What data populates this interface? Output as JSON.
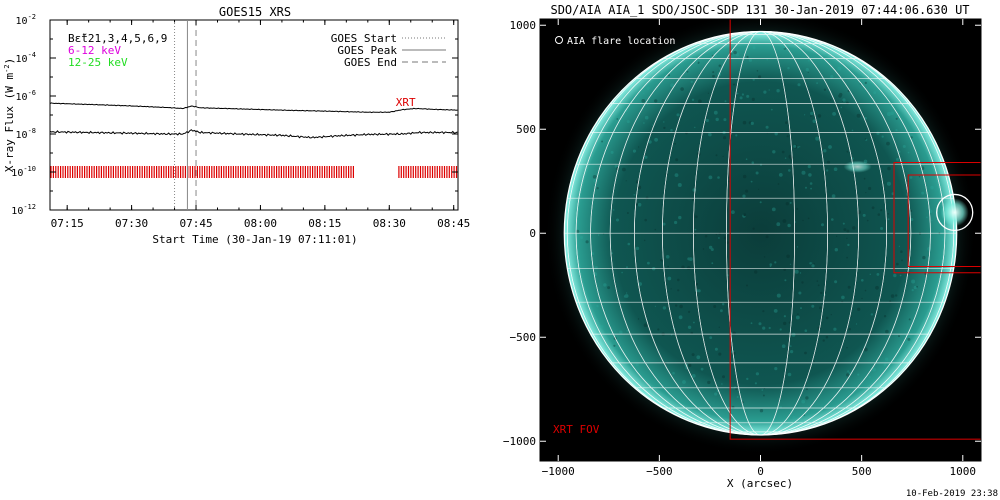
{
  "chart_data": [
    {
      "type": "line",
      "title": "GOES15 XRS",
      "xlabel": "Start Time (30-Jan-19 07:11:01)",
      "ylabel": "X-ray Flux (W m",
      "ylabel_sup": "-2",
      "ylabel_end": ")",
      "x_ticks": [
        "07:15",
        "07:30",
        "07:45",
        "08:00",
        "08:15",
        "08:30",
        "08:45"
      ],
      "y_ticks": [
        {
          "base": "10",
          "exp": "-2"
        },
        {
          "base": "10",
          "exp": "-4"
        },
        {
          "base": "10",
          "exp": "-6"
        },
        {
          "base": "10",
          "exp": "-8"
        },
        {
          "base": "10",
          "exp": "-10"
        },
        {
          "base": "10",
          "exp": "-12"
        }
      ],
      "xlim": [
        "07:11",
        "08:46"
      ],
      "ylim": [
        1e-12,
        0.01
      ],
      "yscale": "log",
      "legend_left": [
        {
          "text": "Bε̃t21,3,4,5,6,9",
          "color": "#000000"
        },
        {
          "text": "6-12 keV",
          "color": "#dd00dd"
        },
        {
          "text": "12-25 keV",
          "color": "#22dd22"
        }
      ],
      "legend_right": [
        {
          "text": "GOES Start",
          "style": "dotted"
        },
        {
          "text": "GOES Peak",
          "style": "solid"
        },
        {
          "text": "GOES End",
          "style": "dashed"
        }
      ],
      "markers": {
        "goes_start": "07:40",
        "goes_peak": "07:43",
        "goes_end": "07:45"
      },
      "annotation": {
        "text": "XRT",
        "x": "08:35",
        "color": "#dd0000"
      },
      "series": [
        {
          "color": "#000000",
          "points": [
            [
              "07:11",
              4.2e-07
            ],
            [
              "07:20",
              3.6e-07
            ],
            [
              "07:30",
              3e-07
            ],
            [
              "07:38",
              2.5e-07
            ],
            [
              "07:42",
              2.2e-07
            ],
            [
              "07:44",
              3e-07
            ],
            [
              "07:46",
              2.4e-07
            ],
            [
              "07:55",
              2.1e-07
            ],
            [
              "08:05",
              1.8e-07
            ],
            [
              "08:15",
              1.6e-07
            ],
            [
              "08:25",
              1.4e-07
            ],
            [
              "08:30",
              1.4e-07
            ],
            [
              "08:33",
              1.9e-07
            ],
            [
              "08:36",
              2.2e-07
            ],
            [
              "08:40",
              2e-07
            ],
            [
              "08:46",
              1.8e-07
            ]
          ]
        },
        {
          "color": "#000000",
          "points": [
            [
              "07:11",
              1.3e-08
            ],
            [
              "07:20",
              1.2e-08
            ],
            [
              "07:30",
              1.1e-08
            ],
            [
              "07:38",
              1e-08
            ],
            [
              "07:42",
              1e-08
            ],
            [
              "07:44",
              1.6e-08
            ],
            [
              "07:46",
              1.2e-08
            ],
            [
              "07:55",
              1e-08
            ],
            [
              "08:05",
              8.5e-09
            ],
            [
              "08:12",
              6.5e-09
            ],
            [
              "08:18",
              8e-09
            ],
            [
              "08:25",
              9.5e-09
            ],
            [
              "08:33",
              1e-08
            ],
            [
              "08:37",
              1.2e-08
            ],
            [
              "08:46",
              1.2e-08
            ]
          ]
        }
      ],
      "xrt_observation_bands": [
        [
          "07:11",
          "08:22"
        ],
        [
          "08:32",
          "08:46"
        ]
      ],
      "xrt_observation_level": 1e-10
    },
    {
      "type": "other",
      "title": "SDO/AIA AIA_1 SDO/JSOC-SDP 131 30-Jan-2019 07:44:06.630 UT",
      "xlabel": "X (arcsec)",
      "x_ticks": [
        -1000,
        -500,
        0,
        500,
        1000
      ],
      "y_ticks": [
        1000,
        500,
        0,
        -500,
        -1000
      ],
      "xlim": [
        -1090,
        1090
      ],
      "ylim": [
        -1095,
        1030
      ],
      "solar_radius_arcsec": 970,
      "grid_spacing_deg": 10,
      "legend": "AIA flare location",
      "flare_location": [
        960,
        100
      ],
      "xrt_fov_label": "XRT FOV",
      "xrt_fov": [
        -150,
        1090,
        -990,
        1030
      ],
      "boxes": [
        [
          730,
          1090,
          -160,
          280
        ],
        [
          660,
          1090,
          -190,
          340
        ]
      ],
      "colors": {
        "disk": "#0c4c48",
        "limb": "#7ff0e0",
        "fov": "#dd0000",
        "grid": "#ffffff",
        "background": "#000000"
      }
    }
  ],
  "footer": {
    "timestamp": "10-Feb-2019 23:38"
  }
}
